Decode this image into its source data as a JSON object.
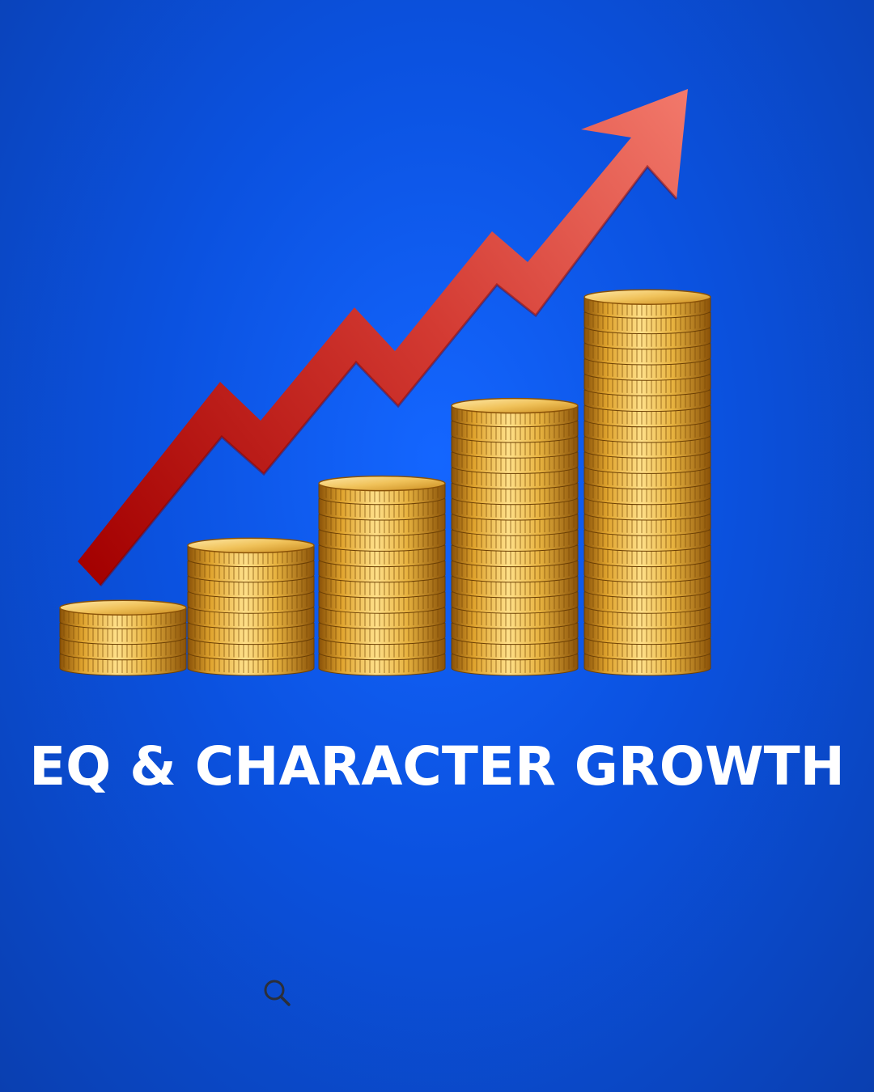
{
  "title": "EQ & CHARACTER GROWTH",
  "illustration": {
    "type": "coin-stacks-with-rising-arrow",
    "coin_stack_levels": [
      4,
      8,
      12,
      17,
      24
    ],
    "colors": {
      "background": "#0b52e0",
      "arrow_start": "#a30000",
      "arrow_end": "#f2796b",
      "coin_light": "#ffe089",
      "coin_mid": "#e0a42e",
      "coin_dark": "#8a5208",
      "title_text": "#ffffff"
    }
  },
  "icons": {
    "search": "search-icon"
  }
}
